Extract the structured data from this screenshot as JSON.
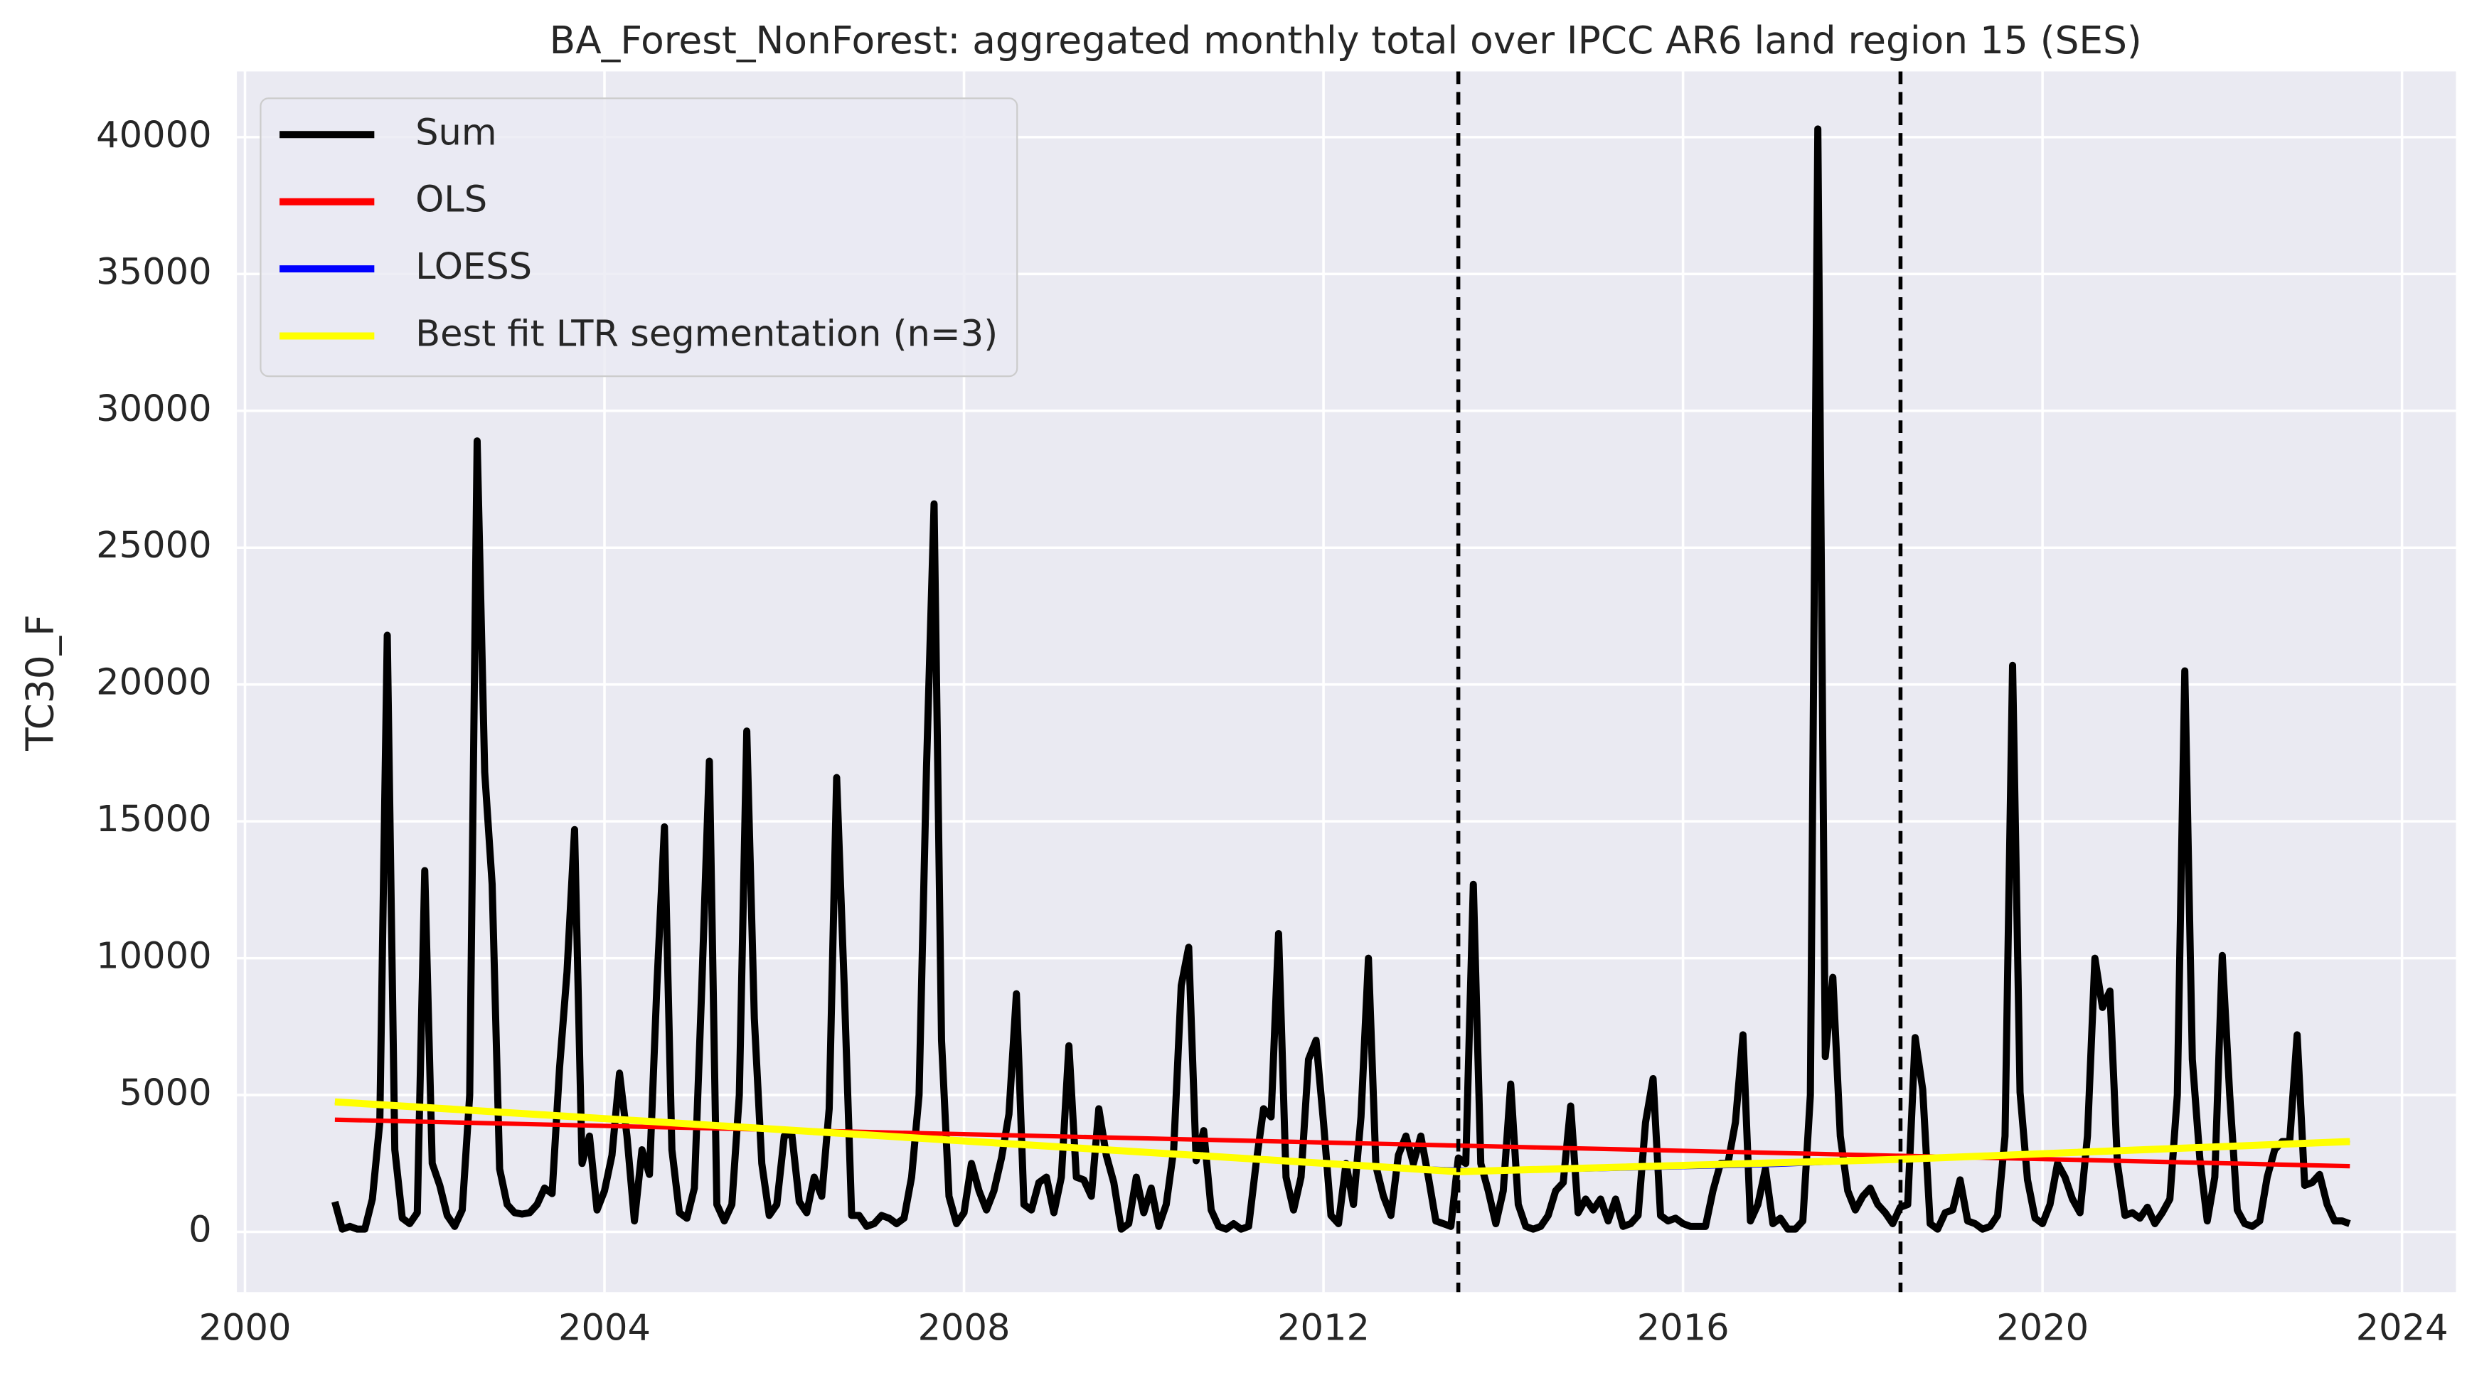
{
  "chart_data": {
    "type": "line",
    "title": "BA_Forest_NonForest: aggregated monthly total over IPCC AR6 land region 15 (SES)",
    "ylabel": "TC30_F",
    "xlim": [
      1999.91,
      2024.6
    ],
    "ylim": [
      -2200,
      42400
    ],
    "xticks": [
      2000,
      2004,
      2008,
      2012,
      2016,
      2020,
      2024
    ],
    "yticks": [
      0,
      5000,
      10000,
      15000,
      20000,
      25000,
      30000,
      35000,
      40000
    ],
    "grid": true,
    "legend": "upper left",
    "vlines": [
      2013.5,
      2018.42
    ],
    "series": [
      {
        "name": "Sum",
        "color": "#000000",
        "x": [
          2001,
          2001.083,
          2001.167,
          2001.25,
          2001.333,
          2001.417,
          2001.5,
          2001.583,
          2001.667,
          2001.75,
          2001.833,
          2001.917,
          2002,
          2002.083,
          2002.167,
          2002.25,
          2002.333,
          2002.417,
          2002.5,
          2002.583,
          2002.667,
          2002.75,
          2002.833,
          2002.917,
          2003,
          2003.083,
          2003.167,
          2003.25,
          2003.333,
          2003.417,
          2003.5,
          2003.583,
          2003.667,
          2003.75,
          2003.833,
          2003.917,
          2004,
          2004.083,
          2004.167,
          2004.25,
          2004.333,
          2004.417,
          2004.5,
          2004.583,
          2004.667,
          2004.75,
          2004.833,
          2004.917,
          2005,
          2005.083,
          2005.167,
          2005.25,
          2005.333,
          2005.417,
          2005.5,
          2005.583,
          2005.667,
          2005.75,
          2005.833,
          2005.917,
          2006,
          2006.083,
          2006.167,
          2006.25,
          2006.333,
          2006.417,
          2006.5,
          2006.583,
          2006.667,
          2006.75,
          2006.833,
          2006.917,
          2007,
          2007.083,
          2007.167,
          2007.25,
          2007.333,
          2007.417,
          2007.5,
          2007.583,
          2007.667,
          2007.75,
          2007.833,
          2007.917,
          2008,
          2008.083,
          2008.167,
          2008.25,
          2008.333,
          2008.417,
          2008.5,
          2008.583,
          2008.667,
          2008.75,
          2008.833,
          2008.917,
          2009,
          2009.083,
          2009.167,
          2009.25,
          2009.333,
          2009.417,
          2009.5,
          2009.583,
          2009.667,
          2009.75,
          2009.833,
          2009.917,
          2010,
          2010.083,
          2010.167,
          2010.25,
          2010.333,
          2010.417,
          2010.5,
          2010.583,
          2010.667,
          2010.75,
          2010.833,
          2010.917,
          2011,
          2011.083,
          2011.167,
          2011.25,
          2011.333,
          2011.417,
          2011.5,
          2011.583,
          2011.667,
          2011.75,
          2011.833,
          2011.917,
          2012,
          2012.083,
          2012.167,
          2012.25,
          2012.333,
          2012.417,
          2012.5,
          2012.583,
          2012.667,
          2012.75,
          2012.833,
          2012.917,
          2013,
          2013.083,
          2013.167,
          2013.25,
          2013.333,
          2013.417,
          2013.5,
          2013.583,
          2013.667,
          2013.75,
          2013.833,
          2013.917,
          2014,
          2014.083,
          2014.167,
          2014.25,
          2014.333,
          2014.417,
          2014.5,
          2014.583,
          2014.667,
          2014.75,
          2014.833,
          2014.917,
          2015,
          2015.083,
          2015.167,
          2015.25,
          2015.333,
          2015.417,
          2015.5,
          2015.583,
          2015.667,
          2015.75,
          2015.833,
          2015.917,
          2016,
          2016.083,
          2016.167,
          2016.25,
          2016.333,
          2016.417,
          2016.5,
          2016.583,
          2016.667,
          2016.75,
          2016.833,
          2016.917,
          2017,
          2017.083,
          2017.167,
          2017.25,
          2017.333,
          2017.417,
          2017.5,
          2017.583,
          2017.667,
          2017.75,
          2017.833,
          2017.917,
          2018,
          2018.083,
          2018.167,
          2018.25,
          2018.333,
          2018.417,
          2018.5,
          2018.583,
          2018.667,
          2018.75,
          2018.833,
          2018.917,
          2019,
          2019.083,
          2019.167,
          2019.25,
          2019.333,
          2019.417,
          2019.5,
          2019.583,
          2019.667,
          2019.75,
          2019.833,
          2019.917,
          2020,
          2020.083,
          2020.167,
          2020.25,
          2020.333,
          2020.417,
          2020.5,
          2020.583,
          2020.667,
          2020.75,
          2020.833,
          2020.917,
          2021,
          2021.083,
          2021.167,
          2021.25,
          2021.333,
          2021.417,
          2021.5,
          2021.583,
          2021.667,
          2021.75,
          2021.833,
          2021.917,
          2022,
          2022.083,
          2022.167,
          2022.25,
          2022.333,
          2022.417,
          2022.5,
          2022.583,
          2022.667,
          2022.75,
          2022.833,
          2022.917,
          2023,
          2023.083,
          2023.167,
          2023.25,
          2023.333,
          2023.417
        ],
        "values": [
          1100,
          100,
          200,
          100,
          100,
          1200,
          4000,
          21800,
          3000,
          500,
          300,
          700,
          13200,
          2500,
          1700,
          600,
          200,
          800,
          5000,
          28900,
          16800,
          12700,
          2300,
          1000,
          700,
          650,
          700,
          1000,
          1600,
          1400,
          6000,
          9500,
          14700,
          2500,
          3500,
          800,
          1500,
          2800,
          5800,
          3500,
          400,
          3000,
          2100,
          9000,
          14800,
          3000,
          700,
          500,
          1600,
          9000,
          17200,
          1000,
          400,
          1000,
          5000,
          18300,
          7800,
          2500,
          600,
          1000,
          3500,
          3600,
          1100,
          700,
          2000,
          1300,
          4500,
          16600,
          9000,
          600,
          600,
          200,
          300,
          600,
          500,
          300,
          500,
          2000,
          5000,
          17000,
          26600,
          7000,
          1300,
          300,
          700,
          2500,
          1500,
          800,
          1500,
          2700,
          4300,
          8700,
          1000,
          800,
          1800,
          2000,
          700,
          2000,
          6800,
          2000,
          1900,
          1300,
          4500,
          2800,
          1800,
          100,
          300,
          2000,
          700,
          1600,
          200,
          1000,
          3000,
          9000,
          10400,
          2600,
          3700,
          800,
          200,
          100,
          300,
          100,
          200,
          2500,
          4500,
          4200,
          10900,
          2000,
          800,
          2000,
          6300,
          7000,
          4000,
          600,
          300,
          2500,
          1000,
          4200,
          10000,
          2400,
          1300,
          600,
          2800,
          3500,
          2500,
          3500,
          2000,
          400,
          300,
          200,
          2700,
          2500,
          12700,
          2500,
          1500,
          300,
          1500,
          5400,
          1000,
          200,
          100,
          200,
          600,
          1500,
          1800,
          4600,
          700,
          1200,
          800,
          1200,
          400,
          1200,
          200,
          300,
          600,
          4000,
          5600,
          600,
          400,
          500,
          300,
          200,
          200,
          200,
          1500,
          2500,
          2500,
          4000,
          7200,
          400,
          1000,
          2300,
          300,
          500,
          100,
          100,
          400,
          5000,
          40300,
          6400,
          9300,
          3500,
          1500,
          800,
          1300,
          1600,
          1000,
          700,
          300,
          900,
          1000,
          7100,
          5200,
          300,
          100,
          700,
          800,
          1900,
          400,
          300,
          100,
          200,
          600,
          3500,
          20700,
          5100,
          1900,
          500,
          300,
          1000,
          2500,
          2000,
          1200,
          700,
          3500,
          10000,
          8200,
          8800,
          2500,
          600,
          700,
          500,
          900,
          300,
          700,
          1200,
          5000,
          20500,
          6300,
          2700,
          400,
          2000,
          10100,
          5000,
          800,
          300,
          200,
          400,
          2000,
          3000,
          3300,
          3300,
          7200,
          1700,
          1800,
          2100,
          1000,
          400,
          400,
          300
        ]
      },
      {
        "name": "OLS",
        "color": "#ff0000",
        "x": [
          2001,
          2023.42
        ],
        "values": [
          4100,
          2400
        ]
      },
      {
        "name": "LOESS",
        "color": "#0000ff",
        "x": [
          2001,
          2004,
          2008,
          2012,
          2014.5,
          2017,
          2020,
          2023.42
        ],
        "values": [
          4700,
          4200,
          3400,
          2500,
          2200,
          2400,
          2800,
          3300
        ]
      },
      {
        "name": "Best fit LTR segmentation (n=3)",
        "color": "#ffff00",
        "x": [
          2001,
          2013.5,
          2018.42,
          2023.42
        ],
        "values": [
          4750,
          2200,
          2650,
          3300
        ]
      }
    ]
  }
}
